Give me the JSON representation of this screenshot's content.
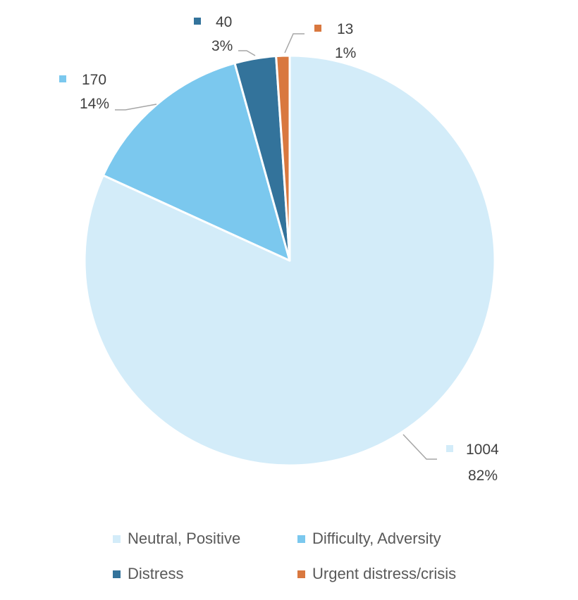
{
  "chart_data": {
    "type": "pie",
    "title": "",
    "categories": [
      "Neutral, Positive",
      "Difficulty, Adversity",
      "Distress",
      "Urgent distress/crisis"
    ],
    "values": [
      1004,
      170,
      40,
      13
    ],
    "percent_labels": [
      "82%",
      "14%",
      "3%",
      "1%"
    ],
    "value_labels": [
      "1004",
      "170",
      "40",
      "13"
    ],
    "colors": [
      "#D3ECF9",
      "#7BC8EE",
      "#33739B",
      "#D9783F"
    ],
    "start_angle": "12 o'clock, clockwise",
    "legend_placement": "bottom"
  }
}
